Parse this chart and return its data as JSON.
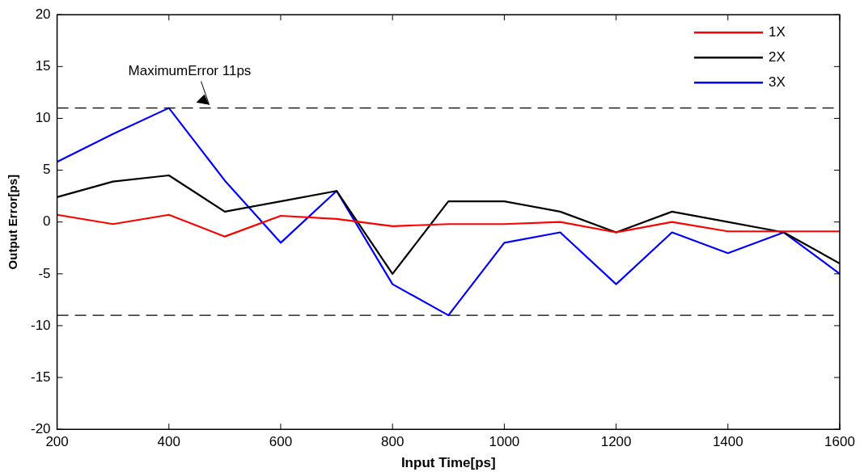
{
  "chart_data": {
    "type": "line",
    "xlabel": "Input Time[ps]",
    "ylabel": "Output Error[ps]",
    "x": [
      200,
      300,
      400,
      500,
      600,
      700,
      800,
      900,
      1000,
      1100,
      1200,
      1300,
      1400,
      1500,
      1600
    ],
    "series": [
      {
        "name": "1X",
        "color": "#ff0000",
        "values": [
          0.7,
          -0.2,
          0.7,
          -1.4,
          0.6,
          0.3,
          -0.4,
          -0.2,
          -0.2,
          0,
          -1,
          0,
          -0.9,
          -0.9,
          -0.9
        ]
      },
      {
        "name": "2X",
        "color": "#000000",
        "values": [
          2.4,
          3.9,
          4.5,
          1,
          2,
          3,
          -5,
          2,
          2,
          1,
          -1,
          1,
          0,
          -1,
          -4
        ]
      },
      {
        "name": "3X",
        "color": "#0000ff",
        "values": [
          5.8,
          8.5,
          11,
          4,
          -2,
          3,
          -6,
          -9,
          -2,
          -1,
          -6,
          -1,
          -3,
          -1,
          -5
        ]
      }
    ],
    "xlim": [
      200,
      1600
    ],
    "xticks": [
      200,
      400,
      600,
      800,
      1000,
      1200,
      1400,
      1600
    ],
    "ylim": [
      -20,
      20
    ],
    "yticks": [
      -20,
      -15,
      -10,
      -5,
      0,
      5,
      10,
      15,
      20
    ],
    "ref_lines": [
      {
        "axis": "y",
        "value": 11,
        "label": "MaximumError 11ps",
        "color": "#000000",
        "line_style": "dashed"
      },
      {
        "axis": "y",
        "value": -9,
        "color": "#000000",
        "line_style": "dashed"
      }
    ],
    "grid": false,
    "legend": "top right",
    "marker": "none",
    "line_style": "solid"
  }
}
